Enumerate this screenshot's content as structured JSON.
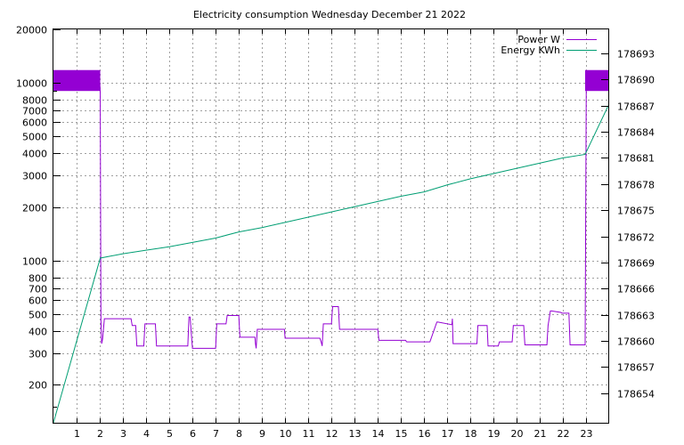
{
  "chart_data": {
    "type": "line",
    "title": "Electricity consumption Wednesday December 21 2022",
    "xlabel": "",
    "ylabel": "",
    "y2label": "",
    "x_ticks": [
      1,
      2,
      3,
      4,
      5,
      6,
      7,
      8,
      9,
      10,
      11,
      12,
      13,
      14,
      15,
      16,
      17,
      18,
      19,
      20,
      21,
      22,
      23
    ],
    "xlim": [
      0,
      23.95
    ],
    "y_scale": "log",
    "ylim": [
      122,
      20000
    ],
    "y_ticks": [
      200,
      300,
      400,
      500,
      600,
      700,
      800,
      1000,
      2000,
      3000,
      4000,
      5000,
      6000,
      7000,
      8000,
      10000,
      20000
    ],
    "y2lim": [
      178650.6,
      178695.75
    ],
    "y2_ticks": [
      178654,
      178657,
      178660,
      178663,
      178666,
      178669,
      178672,
      178675,
      178678,
      178681,
      178684,
      178687,
      178690,
      178693
    ],
    "grid": true,
    "legend_position": "top-right",
    "series": [
      {
        "name": "Power W",
        "axis": "y",
        "color": "#9400d3",
        "x": [
          0,
          2.0,
          2.02,
          2.05,
          2.08,
          2.12,
          2.2,
          2.28,
          2.32,
          3.35,
          3.4,
          3.55,
          3.6,
          3.9,
          3.95,
          4.4,
          4.45,
          5.5,
          5.52,
          5.8,
          5.85,
          5.9,
          6.0,
          7.0,
          7.05,
          7.45,
          7.5,
          8.0,
          8.05,
          8.7,
          8.72,
          8.75,
          8.8,
          9.97,
          10.0,
          11.5,
          11.55,
          11.6,
          11.65,
          12.0,
          12.05,
          12.3,
          12.35,
          12.6,
          12.65,
          14.0,
          14.05,
          15.2,
          15.25,
          16.2,
          16.25,
          16.55,
          16.6,
          17.2,
          17.22,
          17.25,
          17.3,
          18.28,
          18.32,
          18.72,
          18.76,
          19.2,
          19.25,
          19.8,
          19.85,
          20.3,
          20.35,
          21.3,
          21.35,
          21.45,
          21.5,
          21.9,
          21.95,
          22.25,
          22.3,
          22.95,
          23.0,
          23.95
        ],
        "y": [
          10000,
          10000,
          9000,
          460,
          340,
          360,
          470,
          470,
          470,
          470,
          430,
          430,
          330,
          330,
          440,
          440,
          330,
          330,
          330,
          330,
          480,
          480,
          320,
          320,
          440,
          440,
          490,
          490,
          370,
          370,
          340,
          320,
          410,
          410,
          365,
          365,
          350,
          330,
          440,
          440,
          550,
          550,
          410,
          410,
          410,
          410,
          355,
          355,
          348,
          348,
          348,
          450,
          450,
          435,
          470,
          340,
          340,
          340,
          430,
          430,
          330,
          330,
          348,
          348,
          430,
          430,
          335,
          335,
          430,
          520,
          520,
          510,
          505,
          505,
          335,
          335,
          10000,
          10000
        ]
      },
      {
        "name": "Energy KWh",
        "axis": "y2",
        "color": "#009e73",
        "x": [
          0,
          2.02,
          3,
          4,
          5,
          6,
          7,
          8,
          9,
          10,
          11,
          12,
          13,
          14,
          15,
          16,
          17,
          18,
          19,
          20,
          21,
          22,
          22.95,
          23.95
        ],
        "y": [
          178650.6,
          178669.5,
          178670.0,
          178670.4,
          178670.8,
          178671.3,
          178671.8,
          178672.5,
          178673.0,
          178673.6,
          178674.2,
          178674.8,
          178675.4,
          178676.0,
          178676.6,
          178677.1,
          178677.9,
          178678.6,
          178679.2,
          178679.8,
          178680.4,
          178681.0,
          178681.4,
          178687.0
        ]
      }
    ]
  },
  "bands": [
    {
      "name": "power-band-left",
      "x0": 0,
      "x1": 2.02,
      "y0": 9000,
      "y1": 11800,
      "color": "#9400d3"
    },
    {
      "name": "power-band-right",
      "x0": 22.95,
      "x1": 23.95,
      "y0": 9000,
      "y1": 11800,
      "color": "#9400d3"
    }
  ]
}
